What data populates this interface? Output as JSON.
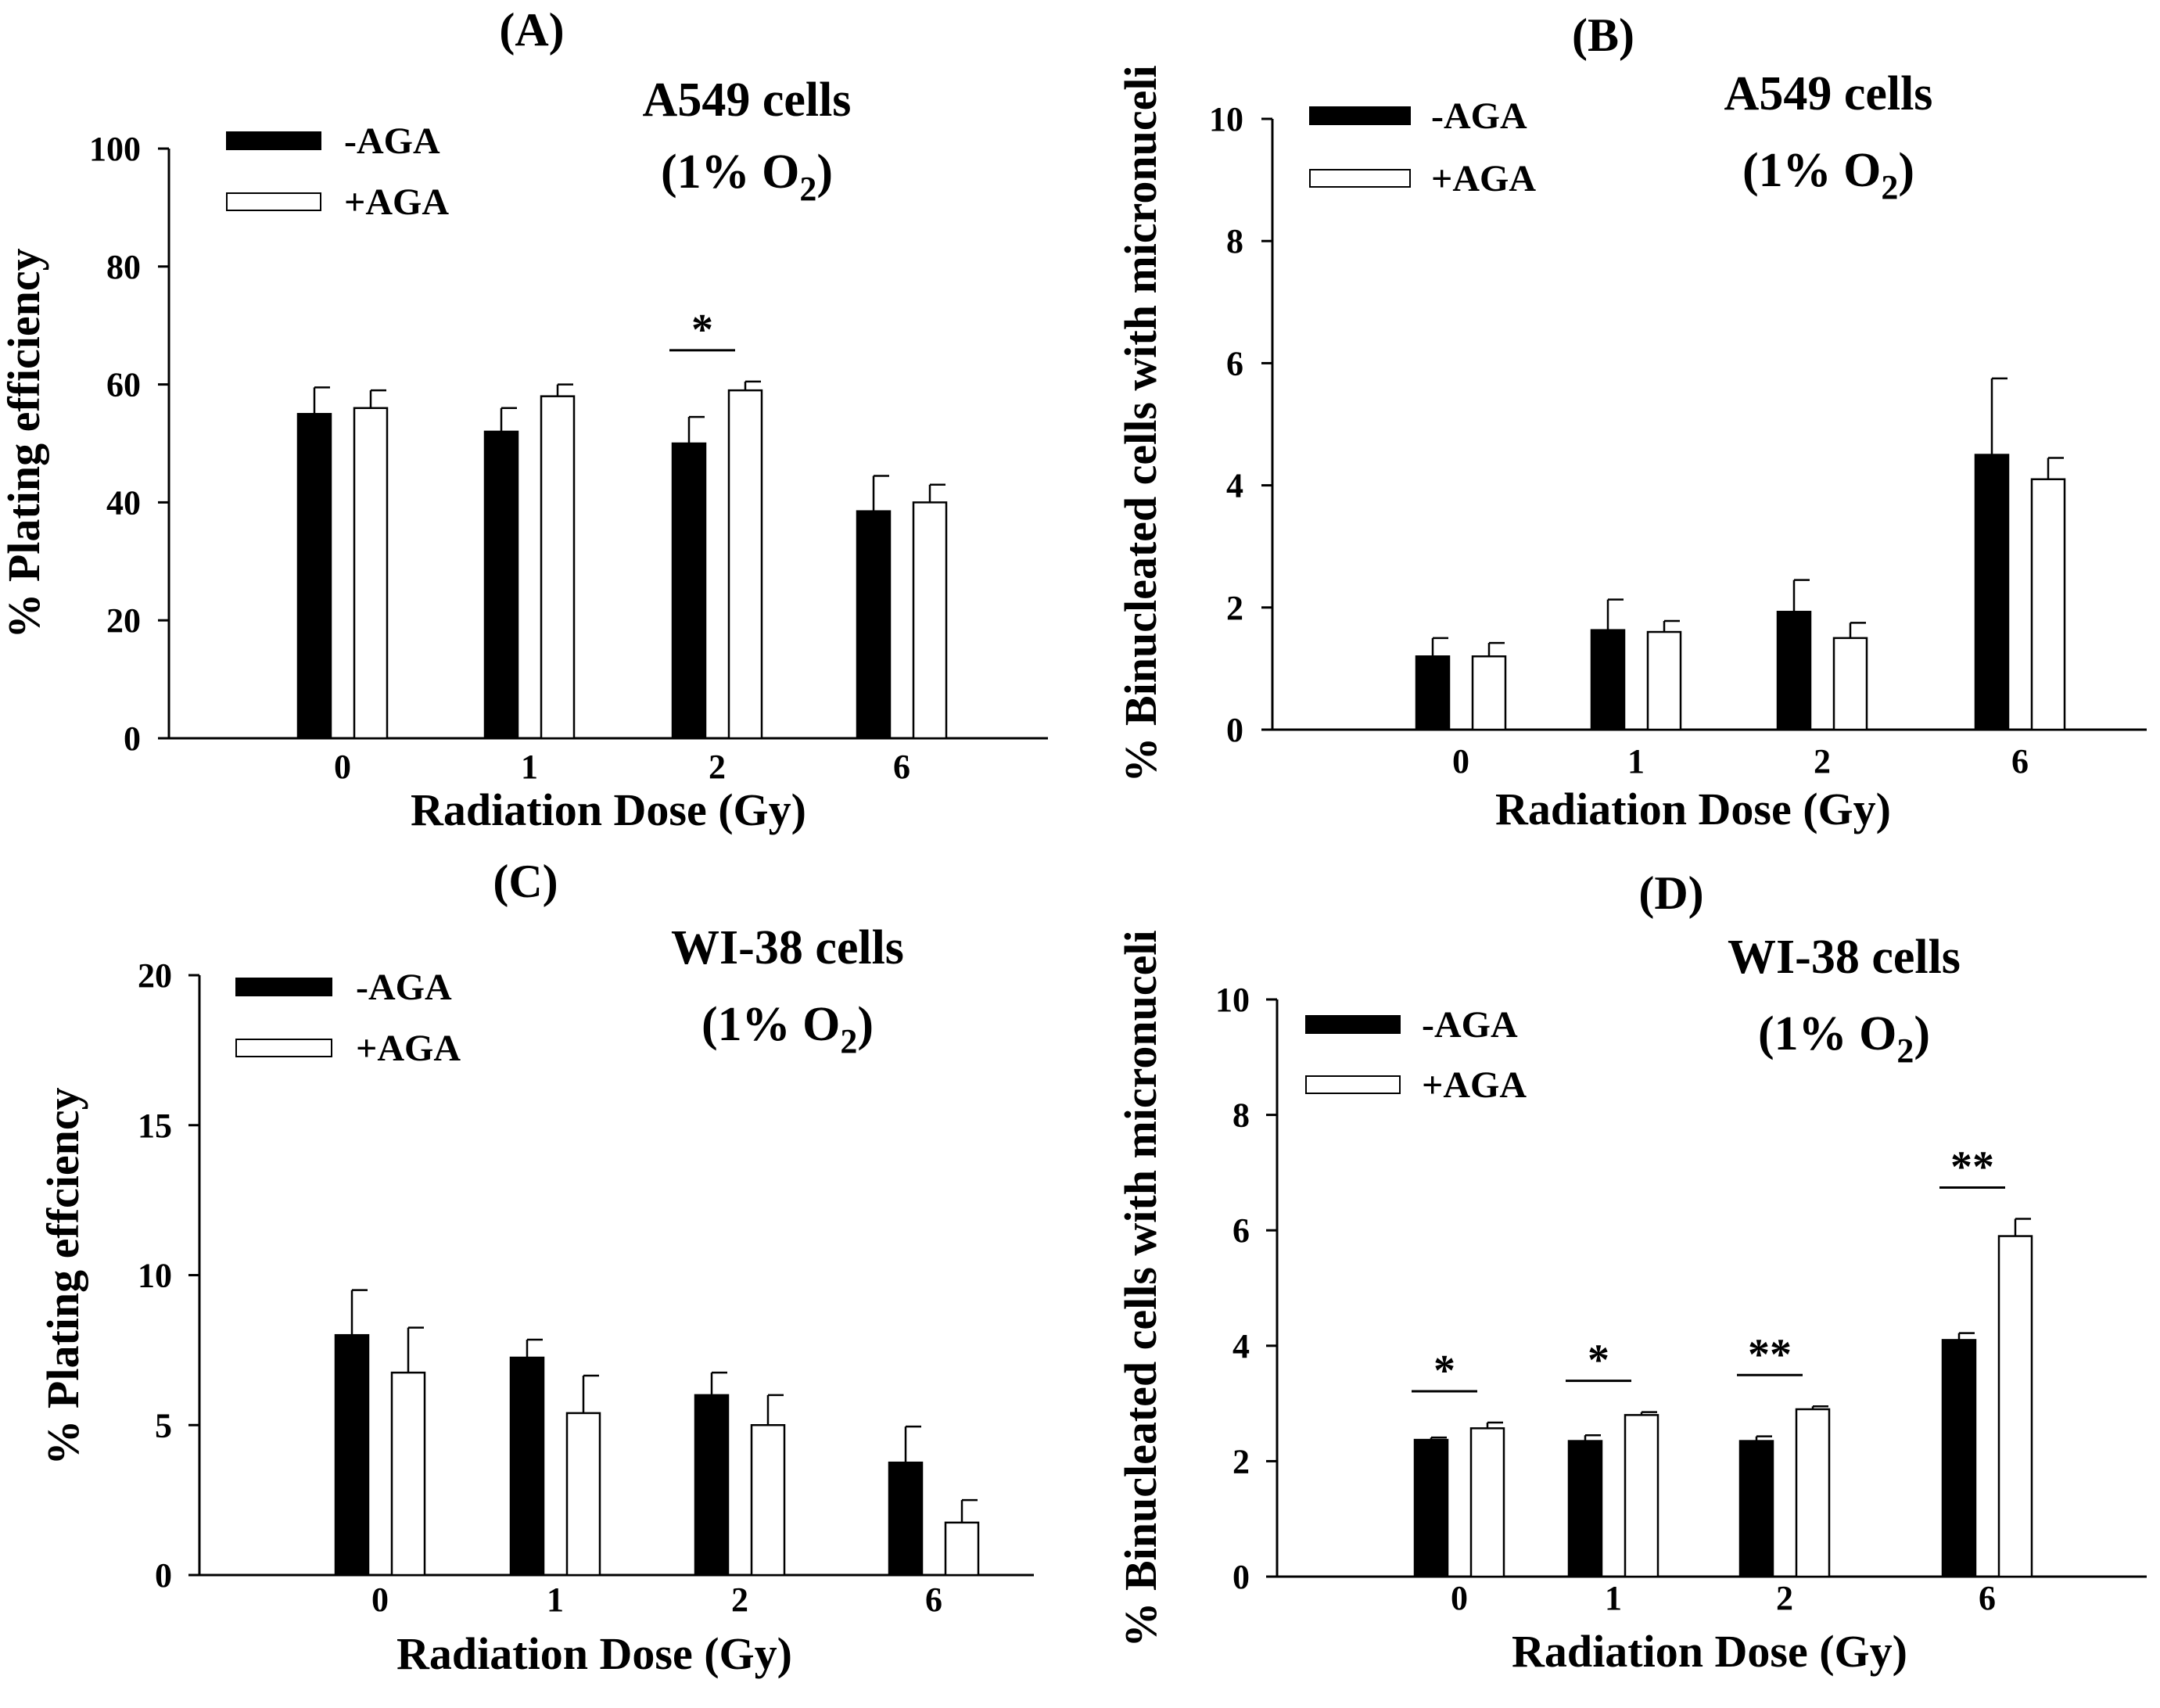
{
  "colors": {
    "minus_aga": "#000000",
    "plus_aga": "#ffffff",
    "axis": "#000000"
  },
  "chart_data": [
    {
      "type": "bar",
      "panel_label": "(A)",
      "title_line1": "A549 cells",
      "title_line2_prefix": "(1% O",
      "title_line2_sub": "2",
      "title_line2_suffix": ")",
      "xlabel": "Radiation Dose (Gy)",
      "ylabel": "% Plating efficiency",
      "ylim": [
        0,
        100
      ],
      "yticks": [
        0,
        20,
        40,
        60,
        80,
        100
      ],
      "categories": [
        "0",
        "1",
        "2",
        "6"
      ],
      "series": [
        {
          "name": "-AGA",
          "values": [
            55,
            52,
            50,
            38.5
          ],
          "errors": [
            4.5,
            4,
            4.5,
            6
          ]
        },
        {
          "name": "+AGA",
          "values": [
            56,
            58,
            59,
            40
          ],
          "errors": [
            3,
            2,
            1.5,
            3
          ]
        }
      ],
      "significance": [
        {
          "index": 2,
          "label": "*"
        }
      ]
    },
    {
      "type": "bar",
      "panel_label": "(B)",
      "title_line1": "A549 cells",
      "title_line2_prefix": "(1% O",
      "title_line2_sub": "2",
      "title_line2_suffix": ")",
      "xlabel": "Radiation Dose (Gy)",
      "ylabel": "% Binucleated cells with micronuceli",
      "ylim": [
        0,
        10
      ],
      "yticks": [
        0,
        2,
        4,
        6,
        8,
        10
      ],
      "categories": [
        "0",
        "1",
        "2",
        "6"
      ],
      "series": [
        {
          "name": "-AGA",
          "values": [
            1.2,
            1.63,
            1.93,
            4.5
          ],
          "errors": [
            0.3,
            0.5,
            0.52,
            1.25
          ]
        },
        {
          "name": "+AGA",
          "values": [
            1.2,
            1.6,
            1.5,
            4.1
          ],
          "errors": [
            0.22,
            0.18,
            0.25,
            0.35
          ]
        }
      ],
      "significance": []
    },
    {
      "type": "bar",
      "panel_label": "(C)",
      "title_line1": "WI-38 cells",
      "title_line2_prefix": "(1% O",
      "title_line2_sub": "2",
      "title_line2_suffix": ")",
      "xlabel": "Radiation Dose (Gy)",
      "ylabel": "% Plating effciency",
      "ylim": [
        0,
        20
      ],
      "yticks": [
        0,
        5,
        10,
        15,
        20
      ],
      "categories": [
        "0",
        "1",
        "2",
        "6"
      ],
      "series": [
        {
          "name": "-AGA",
          "values": [
            8,
            7.25,
            6,
            3.75
          ],
          "errors": [
            1.5,
            0.6,
            0.75,
            1.2
          ]
        },
        {
          "name": "+AGA",
          "values": [
            6.75,
            5.4,
            5,
            1.75
          ],
          "errors": [
            1.5,
            1.25,
            1,
            0.75
          ]
        }
      ],
      "significance": []
    },
    {
      "type": "bar",
      "panel_label": "(D)",
      "title_line1": "WI-38 cells",
      "title_line2_prefix": "(1% O",
      "title_line2_sub": "2",
      "title_line2_suffix": ")",
      "xlabel": "Radiation Dose (Gy)",
      "ylabel": "% Binucleated cells with micronuceli",
      "ylim": [
        0,
        10
      ],
      "yticks": [
        0,
        2,
        4,
        6,
        8,
        10
      ],
      "categories": [
        "0",
        "1",
        "2",
        "6"
      ],
      "series": [
        {
          "name": "-AGA",
          "values": [
            2.37,
            2.35,
            2.35,
            4.1
          ],
          "errors": [
            0.04,
            0.1,
            0.08,
            0.12
          ]
        },
        {
          "name": "+AGA",
          "values": [
            2.57,
            2.8,
            2.9,
            5.9
          ],
          "errors": [
            0.1,
            0.05,
            0.05,
            0.3
          ]
        }
      ],
      "significance": [
        {
          "index": 0,
          "label": "*"
        },
        {
          "index": 1,
          "label": "*"
        },
        {
          "index": 2,
          "label": "**"
        },
        {
          "index": 3,
          "label": "**"
        }
      ]
    }
  ]
}
